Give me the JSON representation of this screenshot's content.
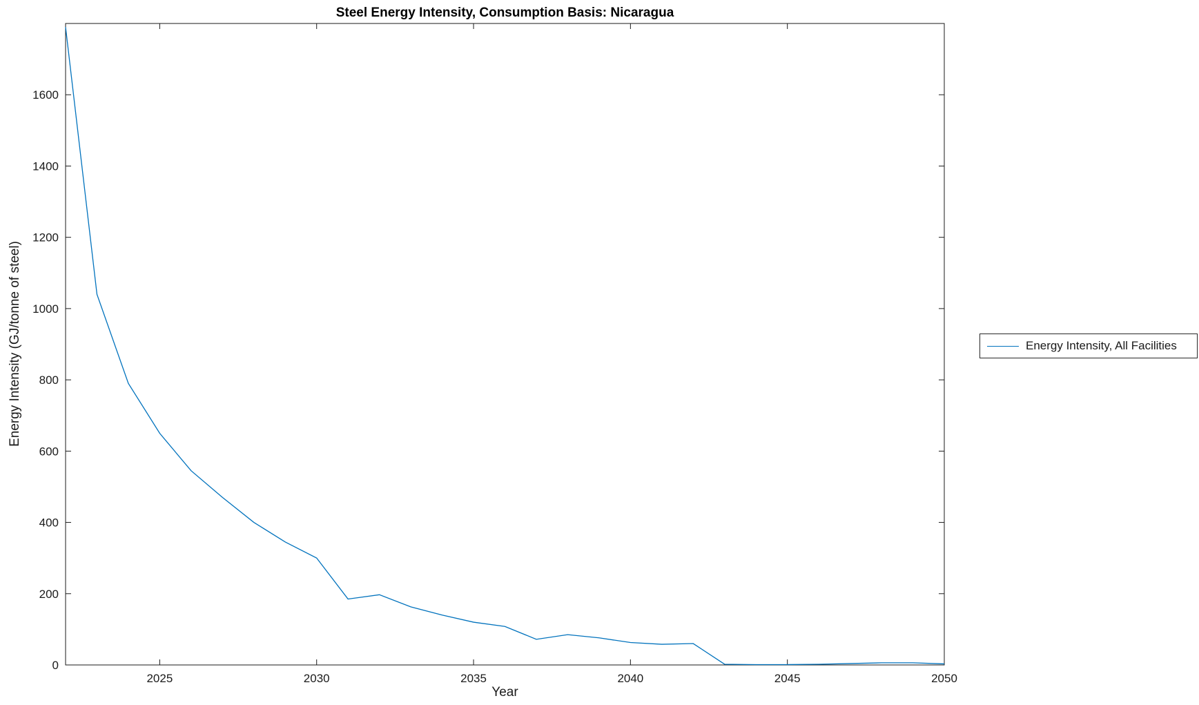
{
  "title": "Steel Energy Intensity, Consumption Basis: Nicaragua",
  "xlabel": "Year",
  "ylabel": "Energy Intensity (GJ/tonne of steel)",
  "legend": {
    "label": "Energy Intensity, All Facilities"
  },
  "colors": {
    "line": "#0072BD",
    "axis": "#1a1a1a",
    "background": "#ffffff"
  },
  "chart_data": {
    "type": "line",
    "title": "Steel Energy Intensity, Consumption Basis: Nicaragua",
    "xlabel": "Year",
    "ylabel": "Energy Intensity (GJ/tonne of steel)",
    "x": [
      2022,
      2023,
      2024,
      2025,
      2026,
      2027,
      2028,
      2029,
      2030,
      2031,
      2032,
      2033,
      2034,
      2035,
      2036,
      2037,
      2038,
      2039,
      2040,
      2041,
      2042,
      2043,
      2044,
      2045,
      2046,
      2047,
      2048,
      2049,
      2050
    ],
    "series": [
      {
        "name": "Energy Intensity, All Facilities",
        "color": "#0072BD",
        "values": [
          1790,
          1040,
          790,
          650,
          545,
          470,
          400,
          345,
          300,
          185,
          197,
          163,
          140,
          120,
          108,
          72,
          85,
          76,
          63,
          58,
          60,
          2,
          1,
          1,
          2,
          4,
          6,
          6,
          3
        ]
      }
    ],
    "xlim": [
      2022,
      2050
    ],
    "ylim": [
      0,
      1800
    ],
    "xticks": [
      2025,
      2030,
      2035,
      2040,
      2045,
      2050
    ],
    "yticks": [
      0,
      200,
      400,
      600,
      800,
      1000,
      1200,
      1400,
      1600
    ],
    "grid": false,
    "legend_position": "right-outside",
    "box": true
  }
}
